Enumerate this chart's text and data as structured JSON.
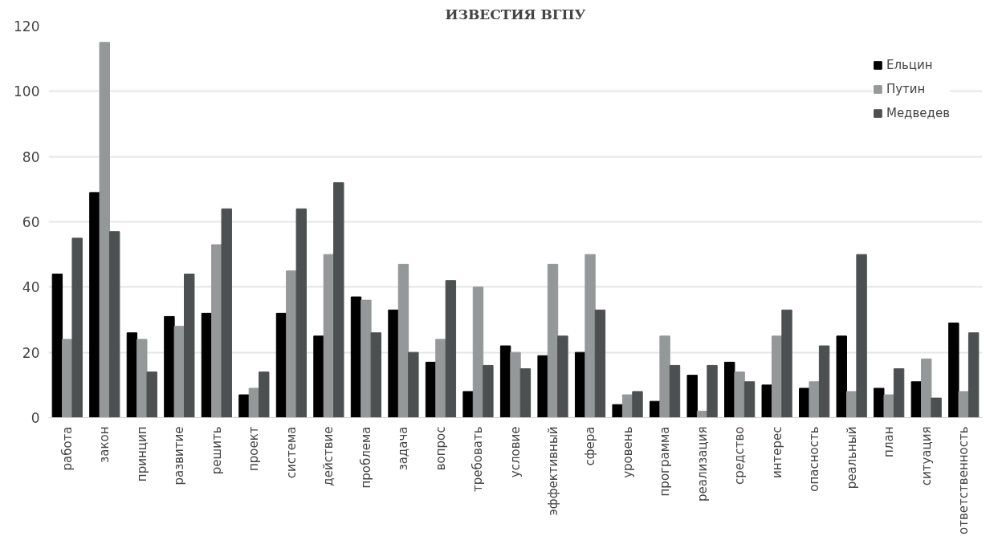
{
  "chart_data": {
    "type": "bar",
    "title": "ИЗВЕСТИЯ ВГПУ",
    "categories": [
      "работа",
      "закон",
      "принцип",
      "развитие",
      "решить",
      "проект",
      "система",
      "действие",
      "проблема",
      "задача",
      "вопрос",
      "требовать",
      "условие",
      "эффективный",
      "сфера",
      "уровень",
      "программа",
      "реализация",
      "средство",
      "интерес",
      "опасность",
      "реальный",
      "план",
      "ситуация",
      "ответственность"
    ],
    "series": [
      {
        "name": "Ельцин",
        "color": "#000000",
        "values": [
          44,
          69,
          26,
          31,
          32,
          7,
          32,
          25,
          37,
          33,
          17,
          8,
          22,
          19,
          20,
          4,
          5,
          13,
          17,
          10,
          9,
          25,
          9,
          11,
          29
        ]
      },
      {
        "name": "Путин",
        "color": "#959898",
        "values": [
          24,
          115,
          24,
          28,
          53,
          9,
          45,
          50,
          36,
          47,
          24,
          40,
          20,
          47,
          50,
          7,
          25,
          2,
          14,
          25,
          11,
          8,
          7,
          18,
          8
        ]
      },
      {
        "name": "Медведев",
        "color": "#4d5050",
        "values": [
          55,
          57,
          14,
          44,
          64,
          14,
          64,
          72,
          26,
          20,
          42,
          16,
          15,
          25,
          33,
          8,
          16,
          16,
          11,
          33,
          22,
          50,
          15,
          6,
          26
        ]
      }
    ],
    "ylim": [
      0,
      120
    ],
    "yticks": [
      0,
      20,
      40,
      60,
      80,
      100,
      120
    ],
    "grid": "y",
    "legend": "top right"
  }
}
